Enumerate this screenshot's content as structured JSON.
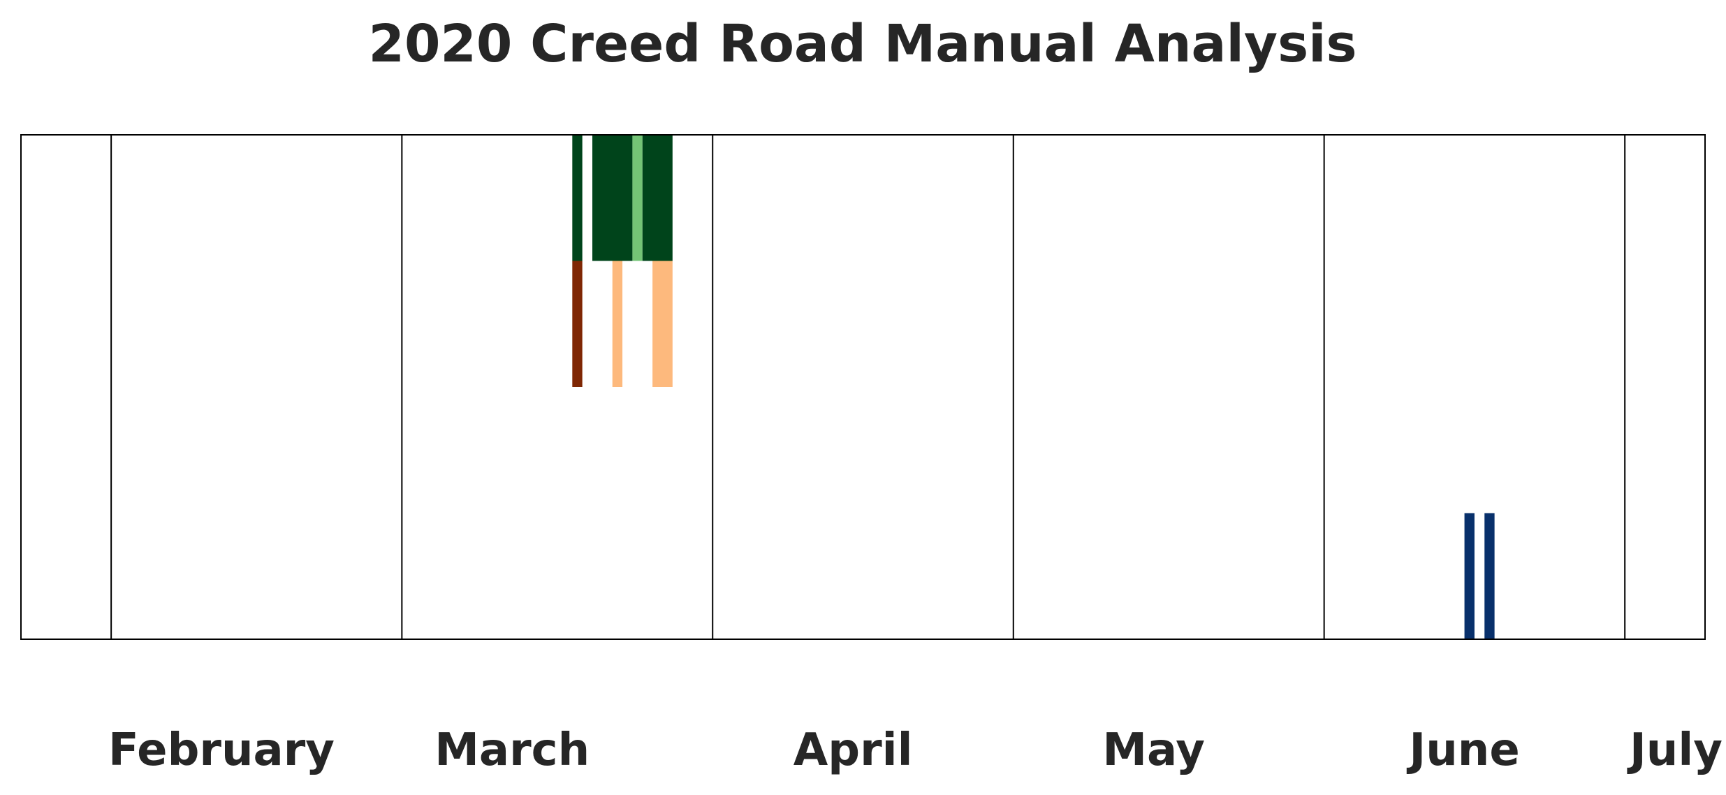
{
  "chart_data": {
    "type": "heatmap",
    "title": "2020 Creed Road Manual Analysis",
    "xlabel": "",
    "ylabel": "",
    "x_axis": {
      "type": "date",
      "range": [
        "2020-01-23",
        "2020-07-09"
      ],
      "month_boundaries": [
        "2020-02-01",
        "2020-03-01",
        "2020-04-01",
        "2020-05-01",
        "2020-06-01",
        "2020-07-01"
      ],
      "month_labels": [
        {
          "label": "February",
          "center": "2020-02-12"
        },
        {
          "label": "March",
          "center": "2020-03-12"
        },
        {
          "label": "April",
          "center": "2020-04-15"
        },
        {
          "label": "May",
          "center": "2020-05-15"
        },
        {
          "label": "June",
          "center": "2020-06-15"
        },
        {
          "label": "July",
          "center": "2020-07-07"
        }
      ]
    },
    "rows": 4,
    "grid": false,
    "legend": "none",
    "events": [
      {
        "row": 0,
        "start": "2020-03-18",
        "end": "2020-03-19",
        "color": "#00441b"
      },
      {
        "row": 0,
        "start": "2020-03-20",
        "end": "2020-03-24",
        "color": "#00441b"
      },
      {
        "row": 0,
        "start": "2020-03-24",
        "end": "2020-03-25",
        "color": "#74c476"
      },
      {
        "row": 0,
        "start": "2020-03-25",
        "end": "2020-03-28",
        "color": "#00441b"
      },
      {
        "row": 1,
        "start": "2020-03-18",
        "end": "2020-03-19",
        "color": "#7f2704"
      },
      {
        "row": 1,
        "start": "2020-03-22",
        "end": "2020-03-23",
        "color": "#fdb97d"
      },
      {
        "row": 1,
        "start": "2020-03-26",
        "end": "2020-03-28",
        "color": "#fdb97d"
      },
      {
        "row": 3,
        "start": "2020-06-15",
        "end": "2020-06-16",
        "color": "#08306b"
      },
      {
        "row": 3,
        "start": "2020-06-17",
        "end": "2020-06-18",
        "color": "#08306b"
      }
    ]
  }
}
